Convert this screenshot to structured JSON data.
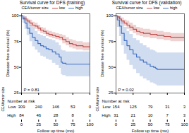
{
  "chart_data": [
    {
      "type": "step",
      "title": "Survival curve for DFS (training)",
      "ylabel": "Disease free survival (%)",
      "xlim": [
        0,
        100
      ],
      "ylim": [
        25,
        102
      ],
      "xticks": [
        0,
        25,
        50,
        75,
        100
      ],
      "yticks": [
        25,
        50,
        75,
        100
      ],
      "tick_labels": "y",
      "legend_title": "CEA/tumor size",
      "annotations": [
        "P = 0.81"
      ],
      "series": [
        {
          "name": "low",
          "color": "#c0504d",
          "x": [
            0,
            2,
            5,
            8,
            12,
            16,
            20,
            24,
            28,
            32,
            36,
            40,
            45,
            50,
            55,
            60,
            65,
            70,
            75,
            80,
            90,
            100
          ],
          "values": [
            100,
            98,
            97,
            95,
            93,
            91,
            90,
            88,
            86,
            85,
            83,
            82,
            81,
            80,
            79,
            77,
            75,
            73,
            72,
            71,
            70,
            70
          ],
          "ci_lo": [
            100,
            96,
            95,
            93,
            90,
            88,
            87,
            85,
            83,
            82,
            80,
            79,
            78,
            77,
            76,
            73,
            71,
            69,
            68,
            67,
            66,
            66
          ],
          "ci_hi": [
            100,
            100,
            99,
            97,
            96,
            94,
            93,
            91,
            89,
            88,
            86,
            85,
            84,
            83,
            82,
            81,
            79,
            77,
            76,
            75,
            74,
            74
          ]
        },
        {
          "name": "high",
          "color": "#4472c4",
          "x": [
            0,
            2,
            5,
            8,
            12,
            16,
            20,
            24,
            28,
            32,
            36,
            40,
            45,
            50,
            55,
            58,
            60,
            65,
            70,
            75,
            80,
            90,
            100
          ],
          "values": [
            100,
            97,
            93,
            88,
            83,
            79,
            76,
            73,
            71,
            70,
            68,
            67,
            65,
            63,
            60,
            55,
            54,
            53,
            53,
            53,
            53,
            53,
            53
          ],
          "ci_lo": [
            100,
            93,
            87,
            81,
            75,
            70,
            67,
            64,
            61,
            60,
            58,
            57,
            54,
            52,
            49,
            43,
            42,
            41,
            41,
            41,
            41,
            41,
            41
          ],
          "ci_hi": [
            100,
            100,
            99,
            95,
            91,
            88,
            85,
            82,
            81,
            80,
            78,
            77,
            76,
            74,
            71,
            67,
            66,
            65,
            65,
            65,
            65,
            65,
            65
          ]
        }
      ]
    },
    {
      "type": "step",
      "title": "Survival curve for DFS (validation)",
      "ylabel": "Disease free survival (%)",
      "xlim": [
        0,
        100
      ],
      "ylim": [
        25,
        102
      ],
      "xticks": [
        0,
        25,
        50,
        75,
        100
      ],
      "yticks": [
        25,
        50,
        75,
        100
      ],
      "tick_labels": "y",
      "legend_title": "CEA/tumor size",
      "annotations": [
        "P = 0.02"
      ],
      "series": [
        {
          "name": "low",
          "color": "#c0504d",
          "x": [
            0,
            2,
            5,
            8,
            12,
            16,
            20,
            25,
            30,
            35,
            40,
            50,
            60,
            70,
            80,
            90,
            100
          ],
          "values": [
            100,
            99,
            97,
            95,
            93,
            91,
            89,
            87,
            85,
            84,
            83,
            82,
            81,
            80,
            79,
            79,
            79
          ],
          "ci_lo": [
            100,
            97,
            95,
            92,
            90,
            87,
            85,
            83,
            81,
            80,
            79,
            78,
            77,
            76,
            75,
            75,
            75
          ],
          "ci_hi": [
            100,
            100,
            99,
            98,
            96,
            95,
            93,
            91,
            89,
            88,
            87,
            86,
            85,
            84,
            83,
            83,
            83
          ]
        },
        {
          "name": "high",
          "color": "#4472c4",
          "x": [
            0,
            2,
            5,
            8,
            12,
            16,
            20,
            25,
            30,
            35,
            40,
            45,
            50,
            55,
            58,
            60,
            65,
            70,
            75,
            80,
            90,
            100
          ],
          "values": [
            100,
            96,
            90,
            83,
            76,
            71,
            67,
            63,
            60,
            57,
            55,
            53,
            51,
            50,
            49,
            48,
            48,
            48,
            48,
            48,
            48,
            48
          ],
          "ci_lo": [
            100,
            89,
            80,
            71,
            63,
            57,
            52,
            48,
            44,
            41,
            39,
            37,
            35,
            34,
            33,
            32,
            32,
            32,
            32,
            32,
            32,
            32
          ],
          "ci_hi": [
            100,
            100,
            100,
            95,
            89,
            85,
            82,
            78,
            76,
            73,
            71,
            69,
            67,
            66,
            65,
            64,
            64,
            64,
            64,
            64,
            64,
            64
          ]
        }
      ]
    },
    {
      "type": "table",
      "title": "Number at risk",
      "xlabel": "Follow up time (mo)",
      "ylabel": "CEA/tumor size",
      "xlim": [
        0,
        100
      ],
      "xticks": [
        0,
        25,
        50,
        75,
        100
      ],
      "x": [
        0,
        25,
        50,
        75,
        100
      ],
      "series": [
        {
          "name": "Low",
          "values": [
            309,
            240,
            146,
            53,
            0
          ]
        },
        {
          "name": "High",
          "values": [
            84,
            46,
            28,
            8,
            0
          ]
        }
      ]
    },
    {
      "type": "table",
      "title": "Number at risk",
      "xlabel": "Follow up time (mo)",
      "ylabel": "CEA/tumor size",
      "xlim": [
        0,
        100
      ],
      "xticks": [
        0,
        25,
        50,
        75,
        100
      ],
      "x": [
        0,
        25,
        50,
        75,
        100
      ],
      "series": [
        {
          "name": "Low",
          "values": [
            154,
            125,
            79,
            31,
            3
          ]
        },
        {
          "name": "High",
          "values": [
            31,
            21,
            10,
            7,
            3
          ]
        }
      ]
    }
  ]
}
